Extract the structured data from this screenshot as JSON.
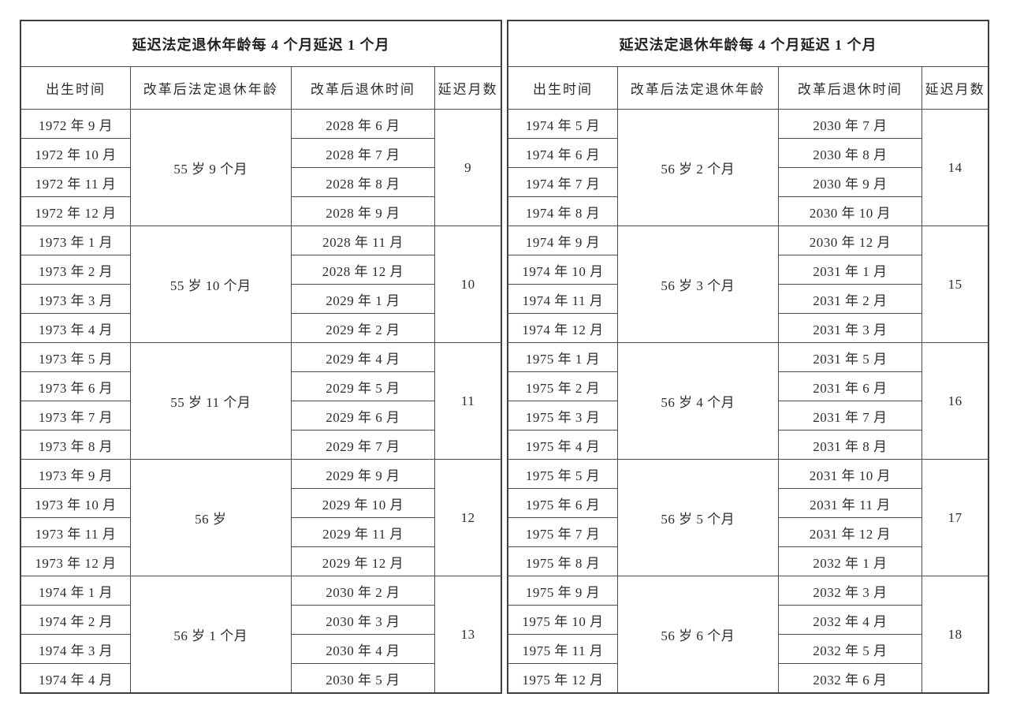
{
  "colors": {
    "background": "#ffffff",
    "border_outer": "#3e3e3e",
    "border_inner": "#4c4c4c",
    "text": "#2d2d2d"
  },
  "tables": [
    {
      "id": "left",
      "title": "延迟法定退休年龄每 4 个月延迟 1 个月",
      "columns": [
        "出生时间",
        "改革后法定退休年龄",
        "改革后退休时间",
        "延迟月数"
      ],
      "groups": [
        {
          "birth_months": [
            "1972 年 9 月",
            "1972 年 10 月",
            "1972 年 11 月",
            "1972 年 12 月"
          ],
          "statutory_age": "55 岁 9 个月",
          "retire_months": [
            "2028 年 6 月",
            "2028 年 7 月",
            "2028 年 8 月",
            "2028 年 9 月"
          ],
          "delay_months": "9"
        },
        {
          "birth_months": [
            "1973 年 1 月",
            "1973 年 2 月",
            "1973 年 3 月",
            "1973 年 4 月"
          ],
          "statutory_age": "55 岁 10 个月",
          "retire_months": [
            "2028 年 11 月",
            "2028 年 12 月",
            "2029 年 1 月",
            "2029 年 2 月"
          ],
          "delay_months": "10"
        },
        {
          "birth_months": [
            "1973 年 5 月",
            "1973 年 6 月",
            "1973 年 7 月",
            "1973 年 8 月"
          ],
          "statutory_age": "55 岁 11 个月",
          "retire_months": [
            "2029 年 4 月",
            "2029 年 5 月",
            "2029 年 6 月",
            "2029 年 7 月"
          ],
          "delay_months": "11"
        },
        {
          "birth_months": [
            "1973 年 9 月",
            "1973 年 10 月",
            "1973 年 11 月",
            "1973 年 12 月"
          ],
          "statutory_age": "56 岁",
          "retire_months": [
            "2029 年 9 月",
            "2029 年 10 月",
            "2029 年 11 月",
            "2029 年 12 月"
          ],
          "delay_months": "12"
        },
        {
          "birth_months": [
            "1974 年 1 月",
            "1974 年 2 月",
            "1974 年 3 月",
            "1974 年 4 月"
          ],
          "statutory_age": "56 岁 1 个月",
          "retire_months": [
            "2030 年 2 月",
            "2030 年 3 月",
            "2030 年 4 月",
            "2030 年 5 月"
          ],
          "delay_months": "13"
        }
      ]
    },
    {
      "id": "right",
      "title": "延迟法定退休年龄每 4 个月延迟 1 个月",
      "columns": [
        "出生时间",
        "改革后法定退休年龄",
        "改革后退休时间",
        "延迟月数"
      ],
      "groups": [
        {
          "birth_months": [
            "1974 年 5 月",
            "1974 年 6 月",
            "1974 年 7 月",
            "1974 年 8 月"
          ],
          "statutory_age": "56 岁 2 个月",
          "retire_months": [
            "2030 年 7 月",
            "2030 年 8 月",
            "2030 年 9 月",
            "2030 年 10 月"
          ],
          "delay_months": "14"
        },
        {
          "birth_months": [
            "1974 年 9 月",
            "1974 年 10 月",
            "1974 年 11 月",
            "1974 年 12 月"
          ],
          "statutory_age": "56 岁 3 个月",
          "retire_months": [
            "2030 年 12 月",
            "2031 年 1 月",
            "2031 年 2 月",
            "2031 年 3 月"
          ],
          "delay_months": "15"
        },
        {
          "birth_months": [
            "1975 年 1 月",
            "1975 年 2 月",
            "1975 年 3 月",
            "1975 年 4 月"
          ],
          "statutory_age": "56 岁 4 个月",
          "retire_months": [
            "2031 年 5 月",
            "2031 年 6 月",
            "2031 年 7 月",
            "2031 年 8 月"
          ],
          "delay_months": "16"
        },
        {
          "birth_months": [
            "1975 年 5 月",
            "1975 年 6 月",
            "1975 年 7 月",
            "1975 年 8 月"
          ],
          "statutory_age": "56 岁 5 个月",
          "retire_months": [
            "2031 年 10 月",
            "2031 年 11 月",
            "2031 年 12 月",
            "2032 年 1 月"
          ],
          "delay_months": "17"
        },
        {
          "birth_months": [
            "1975 年 9 月",
            "1975 年 10 月",
            "1975 年 11 月",
            "1975 年 12 月"
          ],
          "statutory_age": "56 岁 6 个月",
          "retire_months": [
            "2032 年 3 月",
            "2032 年 4 月",
            "2032 年 5 月",
            "2032 年 6 月"
          ],
          "delay_months": "18"
        }
      ]
    }
  ]
}
